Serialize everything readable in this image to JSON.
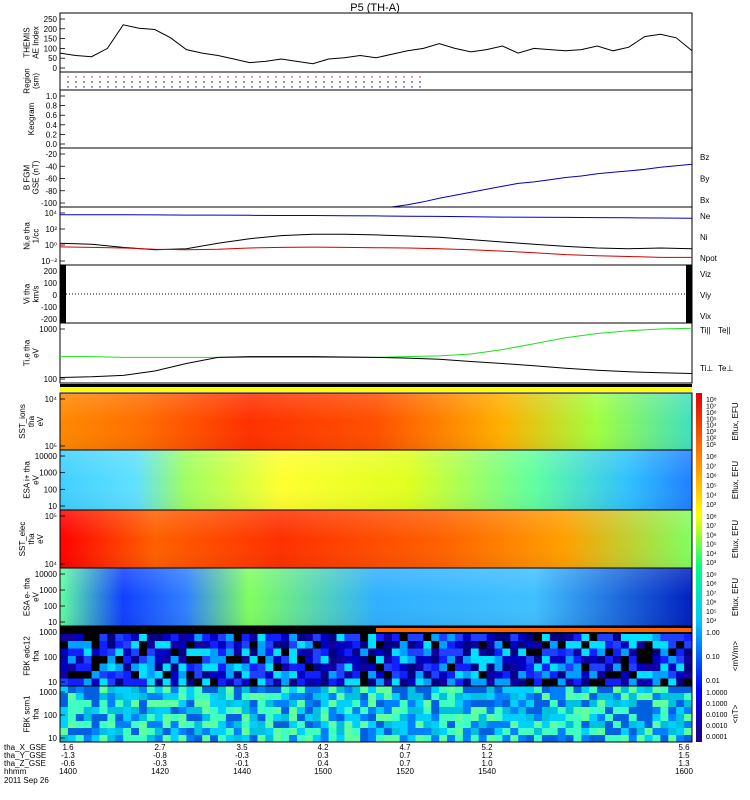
{
  "chart_data": {
    "type": "line",
    "title": "P5 (TH-A)",
    "colors": {
      "bz": "#d00000",
      "by": "#00c000",
      "bx": "#0000c0",
      "ne": "#d00000",
      "ni": "#000000",
      "npot": "#0000c0",
      "ti": "#20e020",
      "te": "#000000"
    },
    "panels": [
      {
        "id": "ae",
        "ylabel": [
          "THEMIS",
          "AE Index"
        ],
        "ylim": [
          0,
          250
        ],
        "ticks": [
          "250",
          "200",
          "150",
          "100",
          "50",
          "0"
        ],
        "series": [
          {
            "name": "",
            "color": "#000",
            "x": [
              1400,
              1405,
              1410,
              1415,
              1420,
              1425,
              1430,
              1435,
              1440,
              1445,
              1450,
              1455,
              1460,
              1465,
              1470,
              1475,
              1480,
              1485,
              1490,
              1495,
              1500,
              1505,
              1510,
              1515,
              1520,
              1525,
              1530,
              1535,
              1540,
              1545,
              1550,
              1555,
              1560,
              1565,
              1570,
              1575,
              1580,
              1585,
              1590,
              1595,
              1600
            ],
            "y": [
              80,
              70,
              65,
              100,
              200,
              185,
              180,
              145,
              95,
              80,
              70,
              55,
              40,
              45,
              55,
              45,
              35,
              55,
              60,
              70,
              60,
              75,
              90,
              100,
              120,
              100,
              85,
              95,
              110,
              80,
              100,
              95,
              90,
              95,
              110,
              90,
              105,
              150,
              160,
              145,
              90
            ]
          }
        ]
      },
      {
        "id": "region",
        "ylabel": [
          "Region",
          "(sm)"
        ],
        "ticks": [],
        "series": []
      },
      {
        "id": "keogram",
        "ylabel": [
          "Keogram"
        ],
        "ylim": [
          0,
          1
        ],
        "ticks": [
          "1.0",
          "0.8",
          "0.6",
          "0.4",
          "0.2",
          "0.0"
        ],
        "series": []
      },
      {
        "id": "bfgm",
        "ylabel": [
          "B FGM",
          "GSE (nT)"
        ],
        "ylim": [
          -100,
          -20
        ],
        "ticks": [
          "-20",
          "-40",
          "-60",
          "-80",
          "-100"
        ],
        "legend": [
          "Bz",
          "By",
          "Bx"
        ],
        "series": [
          {
            "name": "Bx",
            "color": "#0000c0",
            "x": [
              1400,
              1475,
              1505,
              1510,
              1515,
              1520,
              1525,
              1530,
              1535,
              1540,
              1545,
              1550,
              1555,
              1560,
              1565,
              1570,
              1575,
              1580,
              1585,
              1590,
              1595,
              1600
            ],
            "y": [
              -100,
              -100,
              -100,
              -97,
              -93,
              -88,
              -84,
              -80,
              -76,
              -72,
              -68,
              -66,
              -63,
              -60,
              -58,
              -55,
              -53,
              -51,
              -49,
              -46,
              -44,
              -42
            ]
          }
        ]
      },
      {
        "id": "density",
        "ylabel": [
          "Ni,e tha",
          "1/cc"
        ],
        "ticks": [
          "10⁴",
          "10²",
          "10⁰",
          "10⁻²"
        ],
        "legend": [
          "Ne",
          "Ni",
          "Npot"
        ],
        "series": [
          {
            "name": "Npot",
            "color": "#0000c0",
            "x": [
              1400,
              1410,
              1420,
              1430,
              1440,
              1450,
              1460,
              1470,
              1480,
              1490,
              1500,
              1510,
              1520,
              1530,
              1540,
              1550,
              1560,
              1570,
              1580,
              1590,
              1600
            ],
            "y": [
              10000,
              10000,
              10000,
              9500,
              9000,
              9000,
              8500,
              8000,
              8000,
              7500,
              7000,
              6500,
              6000,
              5500,
              5000,
              4800,
              4500,
              4200,
              4000,
              3800,
              3500
            ]
          },
          {
            "name": "Ni",
            "color": "#000",
            "x": [
              1400,
              1410,
              1420,
              1430,
              1440,
              1450,
              1460,
              1470,
              1480,
              1490,
              1500,
              1510,
              1520,
              1530,
              1540,
              1550,
              1560,
              1570,
              1580,
              1590,
              1600
            ],
            "y": [
              2,
              1.5,
              0.6,
              0.3,
              0.4,
              2,
              8,
              20,
              30,
              30,
              25,
              18,
              12,
              6,
              3,
              1.5,
              0.8,
              0.5,
              0.4,
              0.5,
              0.4
            ]
          },
          {
            "name": "Ne",
            "color": "#d00000",
            "x": [
              1400,
              1410,
              1420,
              1430,
              1440,
              1450,
              1460,
              1470,
              1480,
              1490,
              1500,
              1510,
              1520,
              1530,
              1540,
              1550,
              1560,
              1570,
              1580,
              1590,
              1600
            ],
            "y": [
              0.7,
              0.6,
              0.5,
              0.35,
              0.3,
              0.35,
              0.5,
              0.6,
              0.65,
              0.6,
              0.55,
              0.5,
              0.4,
              0.3,
              0.2,
              0.12,
              0.07,
              0.05,
              0.04,
              0.03,
              0.03
            ]
          }
        ]
      },
      {
        "id": "velocity",
        "ylabel": [
          "Vi tha",
          "km/s"
        ],
        "ylim": [
          -250,
          250
        ],
        "ticks": [
          "200",
          "100",
          "0",
          "-100",
          "-200"
        ],
        "legend": [
          "Viz",
          "Viy",
          "Vix"
        ],
        "series": []
      },
      {
        "id": "temperature",
        "ylabel": [
          "Ti,e tha",
          "eV"
        ],
        "ticks": [
          "1000",
          "100"
        ],
        "legend": [
          "Ti||",
          "Te||",
          "Ti⊥",
          "Te⊥"
        ],
        "series": [
          {
            "name": "Ti||",
            "color": "#20e020",
            "x": [
              1400,
              1410,
              1420,
              1430,
              1440,
              1450,
              1460,
              1470,
              1480,
              1490,
              1500,
              1510,
              1520,
              1530,
              1540,
              1550,
              1560,
              1570,
              1580,
              1590,
              1600
            ],
            "y": [
              260,
              260,
              250,
              250,
              250,
              250,
              250,
              250,
              250,
              250,
              250,
              260,
              270,
              300,
              380,
              520,
              720,
              900,
              1050,
              1150,
              1200
            ]
          },
          {
            "name": "Te||",
            "color": "#000",
            "x": [
              1400,
              1410,
              1420,
              1430,
              1440,
              1450,
              1460,
              1470,
              1480,
              1490,
              1500,
              1510,
              1520,
              1530,
              1540,
              1550,
              1560,
              1570,
              1580,
              1590,
              1600
            ],
            "y": [
              85,
              88,
              95,
              120,
              180,
              250,
              260,
              260,
              260,
              255,
              250,
              240,
              225,
              200,
              180,
              160,
              140,
              125,
              115,
              110,
              105
            ]
          }
        ]
      },
      {
        "id": "sst_ion",
        "ylabel": [
          "SST_ions",
          "tha",
          "eV"
        ],
        "ticks": [
          "10⁴",
          "10⁵"
        ],
        "colorbar": "Eflux, EFU",
        "cticks": [
          "10⁸",
          "10⁷",
          "10⁶",
          "10⁵",
          "10⁴",
          "10³",
          "10²",
          "10¹"
        ]
      },
      {
        "id": "esa_ion",
        "ylabel": [
          "ESA i+ tha",
          "eV"
        ],
        "ticks": [
          "10000",
          "1000",
          "100",
          "10"
        ],
        "colorbar": "Eflux, EFU",
        "cticks": [
          "10⁸",
          "10⁷",
          "10⁶",
          "10⁵",
          "10⁴",
          "10³"
        ]
      },
      {
        "id": "sst_elec",
        "ylabel": [
          "SST_elec",
          "tha",
          "eV"
        ],
        "ticks": [
          "10⁵",
          "10⁴"
        ],
        "colorbar": "Eflux, EFU",
        "cticks": [
          "10⁸",
          "10⁷",
          "10⁶",
          "10⁵",
          "10⁴",
          "10³"
        ]
      },
      {
        "id": "esa_elec",
        "ylabel": [
          "ESA e- tha",
          "eV"
        ],
        "ticks": [
          "10000",
          "1000",
          "100",
          "10"
        ],
        "colorbar": "Eflux, EFU",
        "cticks": [
          "10⁹",
          "10⁸",
          "10⁷",
          "10⁶",
          "10⁵",
          "10⁴"
        ]
      },
      {
        "id": "fbk_edc",
        "ylabel": [
          "FBK edc12",
          "tha"
        ],
        "ticks": [
          "1000",
          "100",
          "10"
        ],
        "colorbar": "<mV/m>",
        "cticks": [
          "1.00",
          "0.10",
          "0.01"
        ]
      },
      {
        "id": "fbk_scm",
        "ylabel": [
          "FBK scm1",
          "tha"
        ],
        "ticks": [
          "1000",
          "100",
          "10"
        ],
        "colorbar": "<nT>",
        "cticks": [
          "1.0000",
          "0.1000",
          "0.0100",
          "0.0010",
          "0.0001"
        ]
      }
    ],
    "xaxis": {
      "rows": [
        {
          "label": "tha_X_GSE",
          "values": [
            "1.6",
            "2.7",
            "3.5",
            "4.2",
            "4.7",
            "5.2",
            "5.6"
          ]
        },
        {
          "label": "tha_Y_GSE",
          "values": [
            "-1.3",
            "-0.8",
            "-0.3",
            "0.3",
            "0.7",
            "1.2",
            "1.5"
          ]
        },
        {
          "label": "tha_Z_GSE",
          "values": [
            "-0.6",
            "-0.3",
            "-0.1",
            "0.4",
            "0.7",
            "1.0",
            "1.3"
          ]
        },
        {
          "label": "hhmm",
          "values": [
            "1400",
            "1420",
            "1440",
            "1500",
            "1520",
            "1540",
            "1600"
          ]
        }
      ],
      "date": "2011 Sep 26"
    }
  }
}
